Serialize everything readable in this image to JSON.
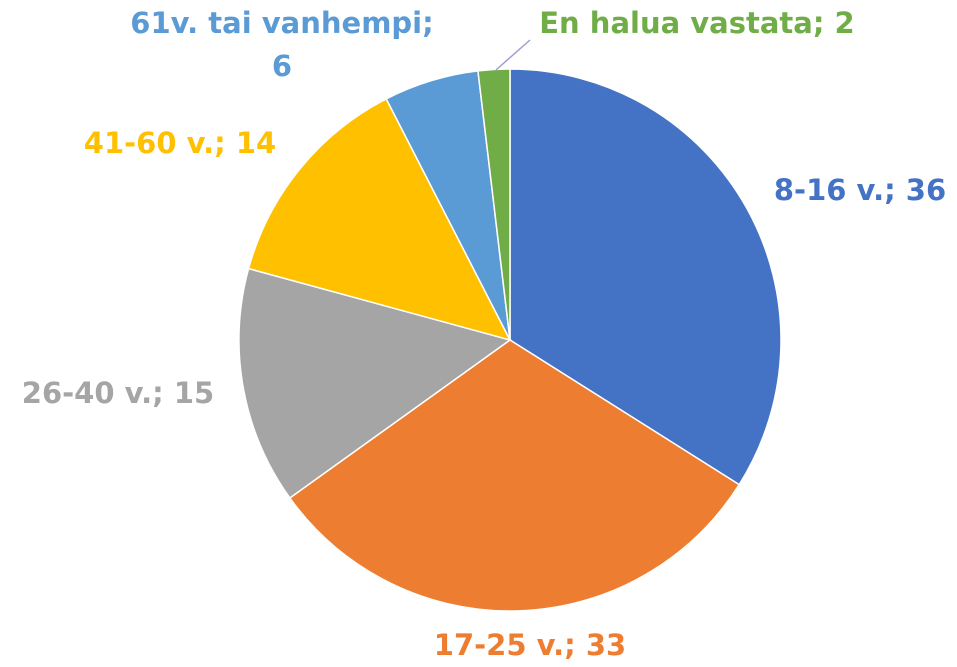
{
  "chart_data": {
    "type": "pie",
    "categories": [
      "8-16 v.; 36",
      "17-25 v.; 33",
      "26-40 v.; 15",
      "41-60 v.; 14",
      "61v. tai vanhempi; 6",
      "En halua vastata; 2"
    ],
    "values": [
      36,
      33,
      15,
      14,
      6,
      2
    ],
    "colors": [
      "#4472c4",
      "#ed7d31",
      "#a5a5a5",
      "#ffc000",
      "#5b9bd5",
      "#70ad47"
    ]
  }
}
